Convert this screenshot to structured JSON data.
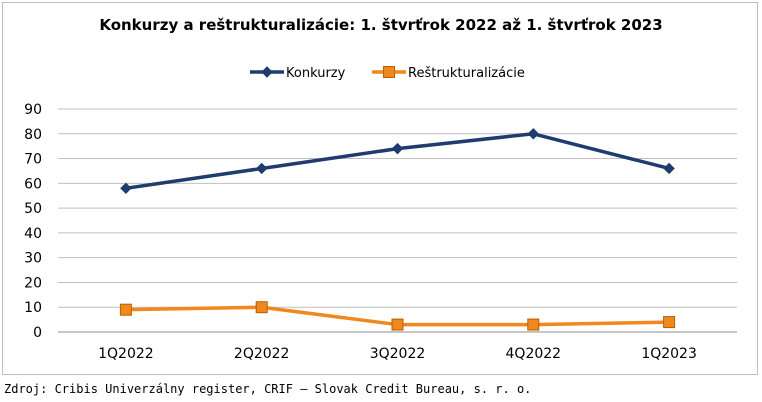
{
  "chart_data": {
    "type": "line",
    "title": "Konkurzy a reštrukturalizácie: 1. štvrťrok 2022 až 1. štvrťrok 2023",
    "categories": [
      "1Q2022",
      "2Q2022",
      "3Q2022",
      "4Q2022",
      "1Q2023"
    ],
    "series": [
      {
        "name": "Konkurzy",
        "values": [
          58,
          66,
          74,
          80,
          66
        ],
        "color": "#1f3c6e",
        "marker": "diamond"
      },
      {
        "name": "Reštrukturalizácie",
        "values": [
          9,
          10,
          3,
          3,
          4
        ],
        "color": "#f0881f",
        "marker": "square"
      }
    ],
    "ylim": [
      0,
      90
    ],
    "yticks": [
      "0",
      "10",
      "20",
      "30",
      "40",
      "50",
      "60",
      "70",
      "80",
      "90"
    ],
    "grid": true,
    "legend": "top-center"
  },
  "source": "Zdroj: Cribis Univerzálny register, CRIF – Slovak Credit Bureau, s. r. o."
}
